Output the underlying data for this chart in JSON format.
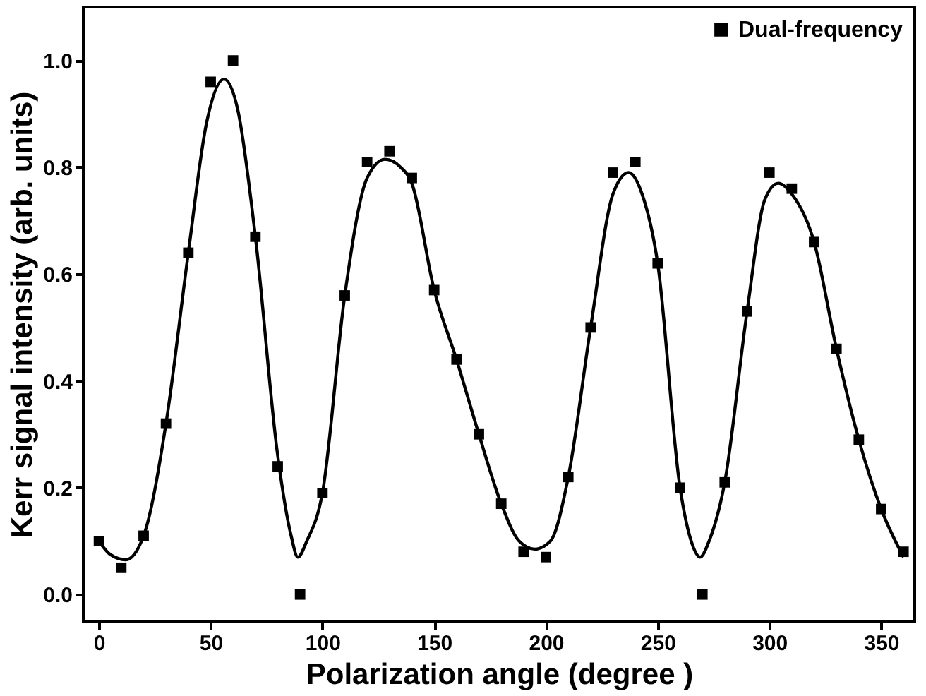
{
  "chart_data": {
    "type": "scatter",
    "xlabel": "Polarization angle (degree )",
    "ylabel": "Kerr signal intensity (arb. units)",
    "xlim": [
      -7,
      365
    ],
    "ylim": [
      -0.05,
      1.1
    ],
    "xticks": [
      0,
      50,
      100,
      150,
      200,
      250,
      300,
      350
    ],
    "yticks": [
      {
        "value": 0,
        "label": "0.0"
      },
      0.2,
      0.4,
      0.6,
      0.8,
      {
        "value": 1,
        "label": "1.0"
      }
    ],
    "legend": "top right",
    "grid": false,
    "series": [
      {
        "name": "Dual-frequency",
        "marker": "square",
        "color": "#000000",
        "x": [
          0,
          10,
          20,
          30,
          40,
          50,
          60,
          70,
          80,
          90,
          100,
          110,
          120,
          130,
          140,
          150,
          160,
          170,
          180,
          190,
          200,
          210,
          220,
          230,
          240,
          250,
          260,
          270,
          280,
          290,
          300,
          310,
          320,
          330,
          340,
          350,
          360
        ],
        "values": [
          0.1,
          0.05,
          0.11,
          0.32,
          0.64,
          0.96,
          1.0,
          0.67,
          0.24,
          0.0,
          0.19,
          0.56,
          0.81,
          0.83,
          0.78,
          0.57,
          0.44,
          0.3,
          0.17,
          0.08,
          0.07,
          0.22,
          0.5,
          0.79,
          0.81,
          0.62,
          0.2,
          0.0,
          0.21,
          0.53,
          0.79,
          0.76,
          0.66,
          0.46,
          0.29,
          0.16,
          0.08
        ]
      },
      {
        "type": "line",
        "marker": "none",
        "color": "#000000",
        "line_style": "solid",
        "x": [
          0,
          5,
          12,
          20,
          30,
          40,
          48,
          56,
          62,
          70,
          80,
          86,
          89,
          93,
          100,
          110,
          120,
          128,
          135,
          140,
          150,
          160,
          170,
          180,
          188,
          195,
          202,
          210,
          220,
          230,
          237,
          243,
          250,
          260,
          265,
          269,
          273,
          280,
          290,
          298,
          304,
          310,
          320,
          330,
          340,
          350,
          360
        ],
        "values": [
          0.1,
          0.075,
          0.065,
          0.11,
          0.32,
          0.64,
          0.88,
          0.965,
          0.91,
          0.67,
          0.26,
          0.11,
          0.07,
          0.1,
          0.19,
          0.56,
          0.78,
          0.815,
          0.8,
          0.77,
          0.57,
          0.44,
          0.3,
          0.17,
          0.1,
          0.085,
          0.1,
          0.22,
          0.5,
          0.75,
          0.79,
          0.75,
          0.62,
          0.2,
          0.1,
          0.07,
          0.1,
          0.21,
          0.53,
          0.74,
          0.77,
          0.75,
          0.66,
          0.46,
          0.29,
          0.16,
          0.07
        ]
      }
    ]
  }
}
